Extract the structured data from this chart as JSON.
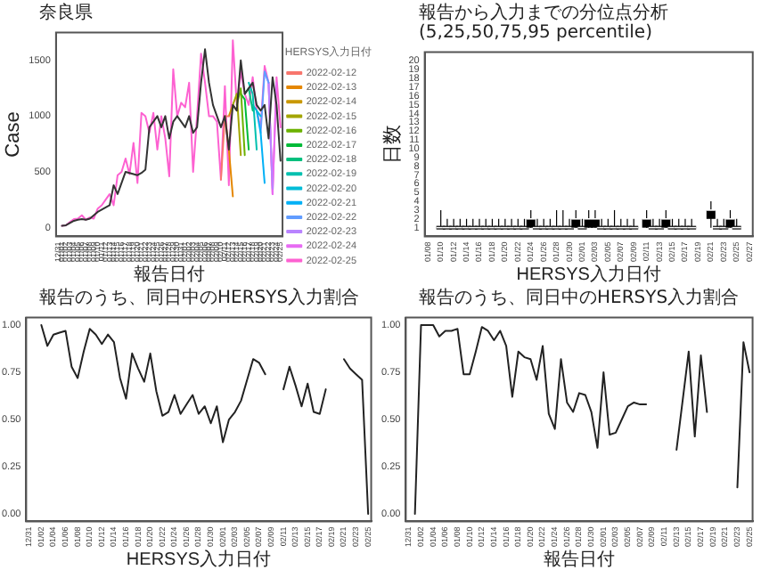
{
  "chart_data": [
    {
      "type": "line",
      "title": "奈良県",
      "xlabel": "報告日付",
      "ylabel": "Case",
      "legend_title": "HERSYS入力日付",
      "legend": "right",
      "categories": [
        "12/31",
        "01/01",
        "01/02",
        "01/03",
        "01/04",
        "01/05",
        "01/06",
        "01/07",
        "01/08",
        "01/09",
        "01/10",
        "01/11",
        "01/12",
        "01/13",
        "01/14",
        "01/15",
        "01/16",
        "01/17",
        "01/18",
        "01/19",
        "01/20",
        "01/21",
        "01/22",
        "01/23",
        "01/24",
        "01/25",
        "01/26",
        "01/27",
        "01/28",
        "01/29",
        "01/30",
        "01/31",
        "02/01",
        "02/02",
        "02/03",
        "02/04",
        "02/05",
        "02/06",
        "02/07",
        "02/08",
        "02/09",
        "02/10",
        "02/11",
        "02/12",
        "02/13",
        "02/14",
        "02/15",
        "02/16",
        "02/17",
        "02/18",
        "02/19",
        "02/20",
        "02/21",
        "02/22",
        "02/23",
        "02/24",
        "02/25"
      ],
      "ylim": [
        -80,
        1750
      ],
      "yticks": [
        0,
        500,
        1000,
        1500
      ],
      "series": [
        {
          "color": "#333333",
          "values": [
            null,
            15,
            20,
            40,
            60,
            70,
            75,
            70,
            80,
            110,
            140,
            160,
            180,
            200,
            380,
            300,
            400,
            500,
            490,
            480,
            470,
            490,
            520,
            900,
            950,
            1000,
            900,
            1000,
            800,
            950,
            1000,
            950,
            900,
            1000,
            850,
            900,
            1300,
            1600,
            1300,
            1100,
            1000,
            900,
            1000,
            700,
            1100,
            1050,
            1500,
            1200,
            1250,
            1300,
            1100,
            1050,
            1100,
            800,
            1350,
            1100,
            600
          ]
        },
        {
          "name": "2022-02-12",
          "color": "#f8766d",
          "values": [
            null,
            null,
            null,
            null,
            null,
            null,
            null,
            null,
            null,
            null,
            null,
            null,
            null,
            null,
            null,
            null,
            null,
            null,
            null,
            null,
            null,
            null,
            null,
            null,
            null,
            null,
            null,
            null,
            null,
            null,
            null,
            null,
            null,
            null,
            null,
            null,
            null,
            null,
            null,
            null,
            null,
            430,
            1000,
            1000,
            null,
            null,
            null,
            null,
            null,
            null,
            null,
            null,
            null,
            null,
            null,
            null,
            null
          ]
        },
        {
          "name": "2022-02-13",
          "color": "#e58700",
          "values": [
            null,
            null,
            null,
            null,
            null,
            null,
            null,
            null,
            null,
            null,
            null,
            null,
            null,
            null,
            null,
            null,
            null,
            null,
            null,
            null,
            null,
            null,
            null,
            null,
            null,
            null,
            null,
            null,
            null,
            null,
            null,
            null,
            null,
            null,
            null,
            null,
            null,
            null,
            null,
            null,
            null,
            null,
            1000,
            700,
            280,
            null,
            null,
            null,
            null,
            null,
            null,
            null,
            null,
            null,
            null,
            null,
            null
          ]
        },
        {
          "name": "2022-02-14",
          "color": "#c99800",
          "values": [
            null,
            null,
            null,
            null,
            null,
            null,
            null,
            null,
            null,
            null,
            null,
            null,
            null,
            null,
            null,
            null,
            null,
            null,
            null,
            null,
            null,
            null,
            null,
            null,
            null,
            null,
            null,
            null,
            null,
            null,
            null,
            null,
            null,
            null,
            null,
            null,
            null,
            null,
            null,
            null,
            null,
            null,
            null,
            1000,
            1100,
            1050,
            null,
            null,
            null,
            null,
            null,
            null,
            null,
            null,
            null,
            null,
            null
          ]
        },
        {
          "name": "2022-02-15",
          "color": "#a3a500",
          "values": [
            null,
            null,
            null,
            null,
            null,
            null,
            null,
            null,
            null,
            null,
            null,
            null,
            null,
            null,
            null,
            null,
            null,
            null,
            null,
            null,
            null,
            null,
            null,
            null,
            null,
            null,
            null,
            null,
            null,
            null,
            null,
            null,
            null,
            null,
            null,
            null,
            null,
            null,
            null,
            null,
            null,
            null,
            null,
            null,
            1100,
            1200,
            650,
            null,
            null,
            null,
            null,
            null,
            null,
            null,
            null,
            null,
            null
          ]
        },
        {
          "name": "2022-02-16",
          "color": "#6bb100",
          "values": [
            null,
            null,
            null,
            null,
            null,
            null,
            null,
            null,
            null,
            null,
            null,
            null,
            null,
            null,
            null,
            null,
            null,
            null,
            null,
            null,
            null,
            null,
            null,
            null,
            null,
            null,
            null,
            null,
            null,
            null,
            null,
            null,
            null,
            null,
            null,
            null,
            null,
            null,
            null,
            null,
            null,
            null,
            null,
            null,
            null,
            1100,
            1250,
            650,
            null,
            null,
            null,
            null,
            null,
            null,
            null,
            null,
            null
          ]
        },
        {
          "name": "2022-02-17",
          "color": "#00ba38",
          "values": [
            null,
            null,
            null,
            null,
            null,
            null,
            null,
            null,
            null,
            null,
            null,
            null,
            null,
            null,
            null,
            null,
            null,
            null,
            null,
            null,
            null,
            null,
            null,
            null,
            null,
            null,
            null,
            null,
            null,
            null,
            null,
            null,
            null,
            null,
            null,
            null,
            null,
            null,
            null,
            null,
            null,
            null,
            null,
            null,
            null,
            null,
            1200,
            1150,
            700,
            null,
            null,
            null,
            null,
            null,
            null,
            null,
            null
          ]
        },
        {
          "name": "2022-02-18",
          "color": "#00bf7d",
          "values": [
            null,
            null,
            null,
            null,
            null,
            null,
            null,
            null,
            null,
            null,
            null,
            null,
            null,
            null,
            null,
            null,
            null,
            null,
            null,
            null,
            null,
            null,
            null,
            null,
            null,
            null,
            null,
            null,
            null,
            null,
            null,
            null,
            null,
            null,
            null,
            null,
            null,
            null,
            null,
            null,
            null,
            null,
            null,
            null,
            null,
            null,
            null,
            1200,
            1250,
            1050,
            null,
            null,
            null,
            null,
            null,
            null,
            null
          ]
        },
        {
          "name": "2022-02-19",
          "color": "#00c0af",
          "values": [
            null,
            null,
            null,
            null,
            null,
            null,
            null,
            null,
            null,
            null,
            null,
            null,
            null,
            null,
            null,
            null,
            null,
            null,
            null,
            null,
            null,
            null,
            null,
            null,
            null,
            null,
            null,
            null,
            null,
            null,
            null,
            null,
            null,
            null,
            null,
            null,
            null,
            null,
            null,
            null,
            null,
            null,
            null,
            null,
            null,
            null,
            null,
            null,
            1300,
            1200,
            700,
            null,
            null,
            null,
            null,
            null,
            null
          ]
        },
        {
          "name": "2022-02-20",
          "color": "#00bcd8",
          "values": [
            null,
            null,
            null,
            null,
            null,
            null,
            null,
            null,
            null,
            null,
            null,
            null,
            null,
            null,
            null,
            null,
            null,
            null,
            null,
            null,
            null,
            null,
            null,
            null,
            null,
            null,
            null,
            null,
            null,
            null,
            null,
            null,
            null,
            null,
            null,
            null,
            null,
            null,
            null,
            null,
            null,
            null,
            null,
            null,
            null,
            null,
            null,
            null,
            null,
            1100,
            1050,
            1000,
            null,
            null,
            null,
            null,
            null
          ]
        },
        {
          "name": "2022-02-21",
          "color": "#00b0f6",
          "values": [
            null,
            null,
            null,
            null,
            null,
            null,
            null,
            null,
            null,
            null,
            null,
            null,
            null,
            null,
            null,
            null,
            null,
            null,
            null,
            null,
            null,
            null,
            null,
            null,
            null,
            null,
            null,
            null,
            null,
            null,
            null,
            null,
            null,
            null,
            null,
            null,
            null,
            null,
            null,
            null,
            null,
            null,
            null,
            null,
            null,
            null,
            null,
            null,
            null,
            null,
            1050,
            850,
            400,
            null,
            null,
            null,
            null
          ]
        },
        {
          "name": "2022-02-22",
          "color": "#619cff",
          "values": [
            null,
            null,
            null,
            null,
            null,
            null,
            null,
            null,
            null,
            null,
            null,
            null,
            null,
            null,
            null,
            null,
            null,
            null,
            null,
            null,
            null,
            null,
            null,
            null,
            null,
            null,
            null,
            null,
            null,
            null,
            null,
            null,
            null,
            null,
            null,
            null,
            null,
            null,
            null,
            null,
            null,
            null,
            null,
            null,
            null,
            null,
            null,
            null,
            null,
            null,
            null,
            850,
            1400,
            1300,
            null,
            null,
            null
          ]
        },
        {
          "name": "2022-02-23",
          "color": "#b983ff",
          "values": [
            null,
            null,
            null,
            null,
            null,
            null,
            null,
            null,
            null,
            null,
            null,
            null,
            null,
            null,
            null,
            null,
            null,
            null,
            null,
            null,
            null,
            null,
            null,
            null,
            null,
            null,
            null,
            null,
            null,
            null,
            null,
            null,
            null,
            null,
            null,
            null,
            null,
            null,
            null,
            null,
            null,
            null,
            null,
            null,
            null,
            null,
            null,
            null,
            null,
            null,
            null,
            null,
            1400,
            1300,
            350,
            null,
            null
          ]
        },
        {
          "name": "2022-02-24",
          "color": "#e76bf3",
          "values": [
            null,
            null,
            null,
            null,
            null,
            null,
            null,
            null,
            null,
            null,
            null,
            null,
            null,
            null,
            null,
            null,
            null,
            null,
            null,
            null,
            null,
            null,
            null,
            null,
            null,
            null,
            null,
            null,
            null,
            null,
            null,
            null,
            null,
            null,
            null,
            null,
            null,
            null,
            null,
            null,
            null,
            null,
            null,
            null,
            null,
            null,
            null,
            null,
            null,
            null,
            null,
            null,
            null,
            1300,
            300,
            1300,
            null
          ]
        },
        {
          "name": "2022-02-25",
          "color": "#fd61d1",
          "values": [
            null,
            15,
            20,
            50,
            75,
            80,
            110,
            70,
            90,
            80,
            170,
            200,
            250,
            300,
            200,
            470,
            500,
            620,
            480,
            760,
            400,
            1030,
            1000,
            850,
            1030,
            700,
            1000,
            800,
            460,
            1420,
            1000,
            1120,
            1080,
            1300,
            500,
            1000,
            1560,
            1300,
            1000,
            1000,
            950,
            430,
            1270,
            380,
            1680,
            1100,
            1400,
            1200,
            1100,
            1350,
            1050,
            900,
            1450,
            1300,
            300,
            1350,
            900
          ]
        }
      ]
    },
    {
      "type": "box",
      "title": "報告から入力までの分位点分析(5,25,50,75,95 percentile)",
      "xlabel": "HERSYS入力日付",
      "ylabel": "日数",
      "color": "#000000",
      "categories": [
        "01/08",
        null,
        "01/10",
        null,
        "01/12",
        null,
        "01/14",
        null,
        "01/16",
        null,
        "01/18",
        null,
        "01/20",
        null,
        "01/22",
        null,
        "01/24",
        null,
        "01/26",
        null,
        "01/28",
        null,
        "01/30",
        null,
        "02/01",
        null,
        "02/03",
        null,
        "02/05",
        null,
        "02/07",
        null,
        "02/09",
        null,
        "02/11",
        null,
        "02/13",
        null,
        "02/15",
        null,
        "02/17",
        null,
        "02/19",
        null,
        "02/21",
        null,
        "02/23",
        null,
        "02/25",
        null,
        "02/27"
      ],
      "ylim": [
        0,
        21
      ],
      "yticks": [
        1,
        2,
        3,
        4,
        5,
        6,
        7,
        8,
        9,
        10,
        11,
        12,
        13,
        14,
        15,
        16,
        17,
        18,
        19,
        20
      ],
      "boxes": [
        null,
        null,
        {
          "low": 1,
          "q1": 1,
          "median": 1,
          "q3": 1,
          "high": 3
        },
        {
          "low": 1,
          "q1": 1,
          "median": 1,
          "q3": 1,
          "high": 2
        },
        {
          "low": 1,
          "q1": 1,
          "median": 1,
          "q3": 1,
          "high": 2
        },
        {
          "low": 1,
          "q1": 1,
          "median": 1,
          "q3": 1,
          "high": 2
        },
        {
          "low": 1,
          "q1": 1,
          "median": 1,
          "q3": 1,
          "high": 2
        },
        {
          "low": 1,
          "q1": 1,
          "median": 1,
          "q3": 1,
          "high": 2
        },
        {
          "low": 1,
          "q1": 1,
          "median": 1,
          "q3": 1,
          "high": 2
        },
        {
          "low": 1,
          "q1": 1,
          "median": 1,
          "q3": 1,
          "high": 2
        },
        {
          "low": 1,
          "q1": 1,
          "median": 1,
          "q3": 1,
          "high": 2
        },
        {
          "low": 1,
          "q1": 1,
          "median": 1,
          "q3": 1,
          "high": 2
        },
        {
          "low": 1,
          "q1": 1,
          "median": 1,
          "q3": 1,
          "high": 2
        },
        {
          "low": 1,
          "q1": 1,
          "median": 1,
          "q3": 1,
          "high": 2
        },
        {
          "low": 1,
          "q1": 1,
          "median": 1,
          "q3": 1,
          "high": 2
        },
        {
          "low": 1,
          "q1": 1,
          "median": 1,
          "q3": 1,
          "high": 2
        },
        {
          "low": 1,
          "q1": 1,
          "median": 2,
          "q3": 2,
          "high": 3
        },
        {
          "low": 1,
          "q1": 1,
          "median": 1,
          "q3": 1,
          "high": 2
        },
        {
          "low": 1,
          "q1": 1,
          "median": 1,
          "q3": 1,
          "high": 2
        },
        {
          "low": 1,
          "q1": 1,
          "median": 1,
          "q3": 1,
          "high": 2
        },
        {
          "low": 1,
          "q1": 1,
          "median": 1,
          "q3": 1,
          "high": 3
        },
        {
          "low": 1,
          "q1": 1,
          "median": 1,
          "q3": 1,
          "high": 3
        },
        {
          "low": 1,
          "q1": 1,
          "median": 1,
          "q3": 1,
          "high": 2
        },
        {
          "low": 1,
          "q1": 1,
          "median": 2,
          "q3": 2,
          "high": 3
        },
        {
          "low": 1,
          "q1": 1,
          "median": 1,
          "q3": 1,
          "high": 2
        },
        {
          "low": 1,
          "q1": 1,
          "median": 2,
          "q3": 2,
          "high": 3
        },
        {
          "low": 1,
          "q1": 1,
          "median": 2,
          "q3": 2,
          "high": 3
        },
        {
          "low": 1,
          "q1": 1,
          "median": 1,
          "q3": 1,
          "high": 2
        },
        {
          "low": 1,
          "q1": 1,
          "median": 1,
          "q3": 1,
          "high": 2
        },
        {
          "low": 1,
          "q1": 1,
          "median": 1,
          "q3": 1,
          "high": 3
        },
        {
          "low": 1,
          "q1": 1,
          "median": 1,
          "q3": 1,
          "high": 2
        },
        {
          "low": 1,
          "q1": 1,
          "median": 1,
          "q3": 1,
          "high": 2
        },
        {
          "low": 1,
          "q1": 1,
          "median": 1,
          "q3": 1,
          "high": 2
        },
        null,
        {
          "low": 1,
          "q1": 1,
          "median": 2,
          "q3": 2,
          "high": 3
        },
        {
          "low": 1,
          "q1": 1,
          "median": 1,
          "q3": 1,
          "high": 2
        },
        {
          "low": 1,
          "q1": 1,
          "median": 1,
          "q3": 1,
          "high": 2
        },
        {
          "low": 1,
          "q1": 1,
          "median": 2,
          "q3": 2,
          "high": 3
        },
        {
          "low": 1,
          "q1": 1,
          "median": 1,
          "q3": 1,
          "high": 2
        },
        {
          "low": 1,
          "q1": 1,
          "median": 1,
          "q3": 1,
          "high": 2
        },
        {
          "low": 1,
          "q1": 1,
          "median": 1,
          "q3": 1,
          "high": 2
        },
        {
          "low": 1,
          "q1": 1,
          "median": 1,
          "q3": 1,
          "high": 2
        },
        null,
        null,
        {
          "low": 1,
          "q1": 2,
          "median": 3,
          "q3": 3,
          "high": 4
        },
        {
          "low": 1,
          "q1": 1,
          "median": 1,
          "q3": 1,
          "high": 2
        },
        {
          "low": 1,
          "q1": 1,
          "median": 1,
          "q3": 1,
          "high": 2
        },
        {
          "low": 1,
          "q1": 1,
          "median": 2,
          "q3": 2,
          "high": 3
        },
        {
          "low": 1,
          "q1": 1,
          "median": 1,
          "q3": 1,
          "high": 2
        },
        null,
        null
      ]
    },
    {
      "type": "line",
      "title": "報告のうち、同日中のHERSYS入力割合",
      "xlabel": "HERSYS入力日付",
      "categories": [
        "12/31",
        null,
        "01/02",
        null,
        "01/04",
        null,
        "01/06",
        null,
        "01/08",
        null,
        "01/10",
        null,
        "01/12",
        null,
        "01/14",
        null,
        "01/16",
        null,
        "01/18",
        null,
        "01/20",
        null,
        "01/22",
        null,
        "01/24",
        null,
        "01/26",
        null,
        "01/28",
        null,
        "01/30",
        null,
        "02/01",
        null,
        "02/03",
        null,
        "02/05",
        null,
        "02/07",
        null,
        "02/09",
        null,
        "02/11",
        null,
        "02/13",
        null,
        "02/15",
        null,
        "02/17",
        null,
        "02/19",
        null,
        "02/21",
        null,
        "02/23",
        null,
        "02/25"
      ],
      "ylim": [
        -0.04,
        1.04
      ],
      "yticks": [
        {
          "value": 0,
          "label": "0.00"
        },
        {
          "value": 0.25,
          "label": "0.25"
        },
        {
          "value": 0.5,
          "label": "0.50"
        },
        {
          "value": 0.75,
          "label": "0.75"
        },
        {
          "value": 1,
          "label": "1.00"
        }
      ],
      "series": [
        {
          "color": "#222222",
          "values": [
            null,
            null,
            1.0,
            0.89,
            0.95,
            0.96,
            0.97,
            0.78,
            0.72,
            0.86,
            0.98,
            0.95,
            0.9,
            0.95,
            0.91,
            0.72,
            0.61,
            0.85,
            0.77,
            0.7,
            0.85,
            0.65,
            0.52,
            0.54,
            0.63,
            0.53,
            0.58,
            0.63,
            0.53,
            0.57,
            0.48,
            0.57,
            0.38,
            0.5,
            0.54,
            0.6,
            0.71,
            0.82,
            0.8,
            0.74,
            null,
            null,
            0.66,
            0.78,
            0.68,
            0.57,
            0.69,
            0.54,
            0.53,
            0.66,
            null,
            null,
            0.82,
            0.77,
            0.74,
            0.71,
            0.0
          ]
        }
      ]
    },
    {
      "type": "line",
      "title": "報告のうち、同日中のHERSYS入力割合",
      "xlabel": "報告日付",
      "categories": [
        "12/31",
        null,
        "01/02",
        null,
        "01/04",
        null,
        "01/06",
        null,
        "01/08",
        null,
        "01/10",
        null,
        "01/12",
        null,
        "01/14",
        null,
        "01/16",
        null,
        "01/18",
        null,
        "01/20",
        null,
        "01/22",
        null,
        "01/24",
        null,
        "01/26",
        null,
        "01/28",
        null,
        "01/30",
        null,
        "02/01",
        null,
        "02/03",
        null,
        "02/05",
        null,
        "02/07",
        null,
        "02/09",
        null,
        "02/11",
        null,
        "02/13",
        null,
        "02/15",
        null,
        "02/17",
        null,
        "02/19",
        null,
        "02/21",
        null,
        "02/23",
        null,
        "02/25"
      ],
      "ylim": [
        -0.04,
        1.04
      ],
      "yticks": [
        {
          "value": 0,
          "label": "0.00"
        },
        {
          "value": 0.25,
          "label": "0.25"
        },
        {
          "value": 0.5,
          "label": "0.50"
        },
        {
          "value": 0.75,
          "label": "0.75"
        },
        {
          "value": 1,
          "label": "1.00"
        }
      ],
      "series": [
        {
          "color": "#222222",
          "values": [
            null,
            0.0,
            1.0,
            1.0,
            1.0,
            0.94,
            0.97,
            0.97,
            0.98,
            0.74,
            0.74,
            0.86,
            0.99,
            0.97,
            0.92,
            0.97,
            0.89,
            0.62,
            0.86,
            0.83,
            0.82,
            0.71,
            0.89,
            0.53,
            0.45,
            0.82,
            0.59,
            0.54,
            0.64,
            0.63,
            0.54,
            0.35,
            0.75,
            0.42,
            0.43,
            0.5,
            0.57,
            0.59,
            0.58,
            0.58,
            null,
            null,
            null,
            null,
            0.34,
            0.6,
            0.86,
            0.41,
            0.84,
            0.54,
            null,
            null,
            null,
            null,
            0.14,
            0.91,
            0.75
          ]
        }
      ]
    }
  ]
}
